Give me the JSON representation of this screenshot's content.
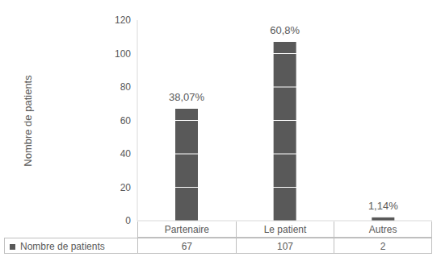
{
  "chart_data": {
    "type": "bar",
    "y_label": "Nombre de patients",
    "categories": [
      "Partenaire",
      "Le patient",
      "Autres"
    ],
    "series": [
      {
        "name": "Nombre de patients",
        "color": "#595959",
        "values": [
          67,
          107,
          2
        ]
      }
    ],
    "annotations": [
      "38,07%",
      "60,8%",
      "1,14%"
    ],
    "ylim": [
      0,
      120
    ],
    "yticks": [
      0,
      20,
      40,
      60,
      80,
      100,
      120
    ],
    "grid": true
  }
}
